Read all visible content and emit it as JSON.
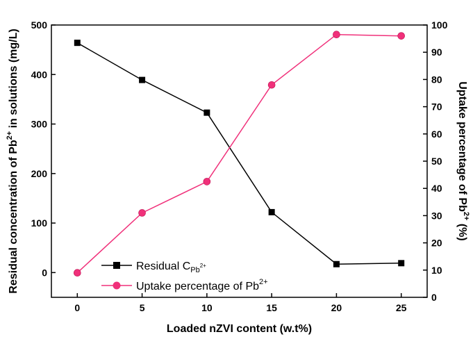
{
  "chart_data": {
    "type": "line",
    "x": [
      0,
      5,
      10,
      15,
      20,
      25
    ],
    "xlabel": "Loaded nZVI content (w.t%)",
    "xlim": [
      -2,
      27
    ],
    "xticks": [
      0,
      5,
      10,
      15,
      20,
      25
    ],
    "left_axis": {
      "label": {
        "main": "Residual concentration of Pb",
        "sup": "2+",
        "tail": " in solutions (mg/L)"
      },
      "ylim": [
        -50,
        500
      ],
      "ticks": [
        0,
        100,
        200,
        300,
        400,
        500
      ]
    },
    "right_axis": {
      "label": {
        "main": "Uptake percentage of Pb",
        "sup": "2+",
        "tail": " (%)"
      },
      "ylim": [
        0,
        100
      ],
      "ticks": [
        0,
        10,
        20,
        30,
        40,
        50,
        60,
        70,
        80,
        90,
        100
      ]
    },
    "series": [
      {
        "name": {
          "main": "Residual C",
          "sub": "Pb",
          "subsup": "2+"
        },
        "axis": "left",
        "marker": "square",
        "color": "#000000",
        "values": [
          464,
          389,
          323,
          122,
          17,
          19
        ]
      },
      {
        "name": {
          "main": "Uptake percentage of Pb",
          "sup": "2+"
        },
        "axis": "right",
        "marker": "circle",
        "color": "#f0307a",
        "values": [
          9,
          31,
          42.5,
          78,
          96.5,
          96
        ]
      }
    ],
    "legend_position": "bottom-left",
    "grid": false
  }
}
